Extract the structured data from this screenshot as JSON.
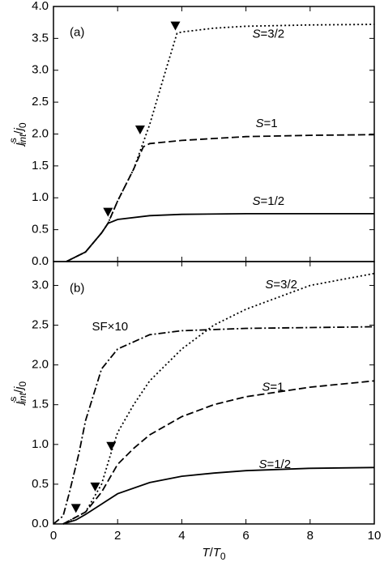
{
  "chart_data": [
    {
      "type": "line",
      "panel_label": "(a)",
      "xlim": [
        0,
        10
      ],
      "ylim": [
        0,
        4.0
      ],
      "xticks": [
        0,
        2,
        4,
        6,
        8,
        10
      ],
      "show_x_tick_labels": false,
      "yticks": [
        {
          "value": 0,
          "label": "0.0"
        },
        {
          "value": 0.5,
          "label": "0.5"
        },
        {
          "value": 1,
          "label": "1.0"
        },
        {
          "value": 1.5,
          "label": "1.5"
        },
        {
          "value": 2,
          "label": "2.0"
        },
        {
          "value": 2.5,
          "label": "2.5"
        },
        {
          "value": 3,
          "label": "3.0"
        },
        {
          "value": 3.5,
          "label": "3.5"
        },
        {
          "value": 4,
          "label": "4.0"
        }
      ],
      "y_label": [
        "j",
        "s",
        "int",
        "/",
        "j",
        "0"
      ],
      "series": [
        {
          "name": "S=3/2",
          "style": "dotted",
          "color": "#000",
          "x": [
            0.4,
            1,
            1.5,
            1.7,
            2,
            2.5,
            3,
            3.5,
            3.85,
            4,
            5,
            6,
            8,
            10
          ],
          "values": [
            0,
            0.15,
            0.45,
            0.6,
            0.95,
            1.45,
            2.15,
            3.0,
            3.58,
            3.6,
            3.66,
            3.69,
            3.71,
            3.72
          ]
        },
        {
          "name": "S=1",
          "style": "dashed",
          "color": "#000",
          "x": [
            0.4,
            1,
            1.5,
            1.7,
            2,
            2.5,
            2.8,
            3,
            4,
            6,
            8,
            10
          ],
          "values": [
            0,
            0.15,
            0.45,
            0.6,
            0.95,
            1.45,
            1.8,
            1.85,
            1.9,
            1.96,
            1.98,
            1.99
          ]
        },
        {
          "name": "S=1/2",
          "style": "solid",
          "color": "#000",
          "x": [
            0.4,
            1,
            1.5,
            1.7,
            2,
            3,
            4,
            6,
            10
          ],
          "values": [
            0,
            0.15,
            0.45,
            0.6,
            0.66,
            0.72,
            0.74,
            0.75,
            0.75
          ]
        }
      ],
      "markers": {
        "x": [
          1.7,
          2.7,
          3.8
        ],
        "values": [
          0.78,
          2.07,
          3.7
        ]
      }
    },
    {
      "type": "line",
      "panel_label": "(b)",
      "xlim": [
        0,
        10
      ],
      "ylim": [
        0,
        3.3
      ],
      "xticks": [
        0,
        2,
        4,
        6,
        8,
        10
      ],
      "show_x_tick_labels": true,
      "x_label": [
        "T",
        "/",
        "T",
        "0"
      ],
      "yticks": [
        {
          "value": 0,
          "label": "0.0"
        },
        {
          "value": 0.5,
          "label": "0.5"
        },
        {
          "value": 1,
          "label": "1.0"
        },
        {
          "value": 1.5,
          "label": "1.5"
        },
        {
          "value": 2,
          "label": "2.0"
        },
        {
          "value": 2.5,
          "label": "2.5"
        },
        {
          "value": 3,
          "label": "3.0"
        }
      ],
      "y_label": [
        "j",
        "s",
        "int",
        "/",
        "j",
        "0"
      ],
      "series": [
        {
          "name": "S=3/2",
          "style": "dotted",
          "color": "#000",
          "x": [
            0.3,
            1,
            1.5,
            1.8,
            2,
            2.5,
            3,
            4,
            5,
            6,
            8,
            10
          ],
          "values": [
            0,
            0.15,
            0.5,
            0.9,
            1.15,
            1.5,
            1.8,
            2.2,
            2.5,
            2.7,
            3.0,
            3.15
          ]
        },
        {
          "name": "SF×10",
          "style": "dashdot",
          "color": "#000",
          "x": [
            0,
            0.3,
            0.5,
            0.8,
            1,
            1.5,
            2,
            3,
            4,
            6,
            10
          ],
          "values": [
            0,
            0.1,
            0.4,
            0.9,
            1.3,
            1.95,
            2.2,
            2.38,
            2.43,
            2.46,
            2.48
          ]
        },
        {
          "name": "S=1",
          "style": "dashed",
          "color": "#000",
          "x": [
            0.3,
            1,
            1.5,
            2,
            2.5,
            3,
            4,
            5,
            6,
            8,
            10
          ],
          "values": [
            0,
            0.15,
            0.4,
            0.75,
            0.95,
            1.12,
            1.35,
            1.5,
            1.6,
            1.72,
            1.8
          ]
        },
        {
          "name": "S=1/2",
          "style": "solid",
          "color": "#000",
          "x": [
            0.3,
            0.7,
            1,
            1.5,
            2,
            3,
            4,
            5,
            6,
            8,
            10
          ],
          "values": [
            0,
            0.05,
            0.12,
            0.25,
            0.38,
            0.52,
            0.6,
            0.64,
            0.67,
            0.7,
            0.71
          ]
        }
      ],
      "markers": {
        "x": [
          0.7,
          1.3,
          1.8
        ],
        "values": [
          0.2,
          0.47,
          0.98
        ]
      }
    }
  ]
}
